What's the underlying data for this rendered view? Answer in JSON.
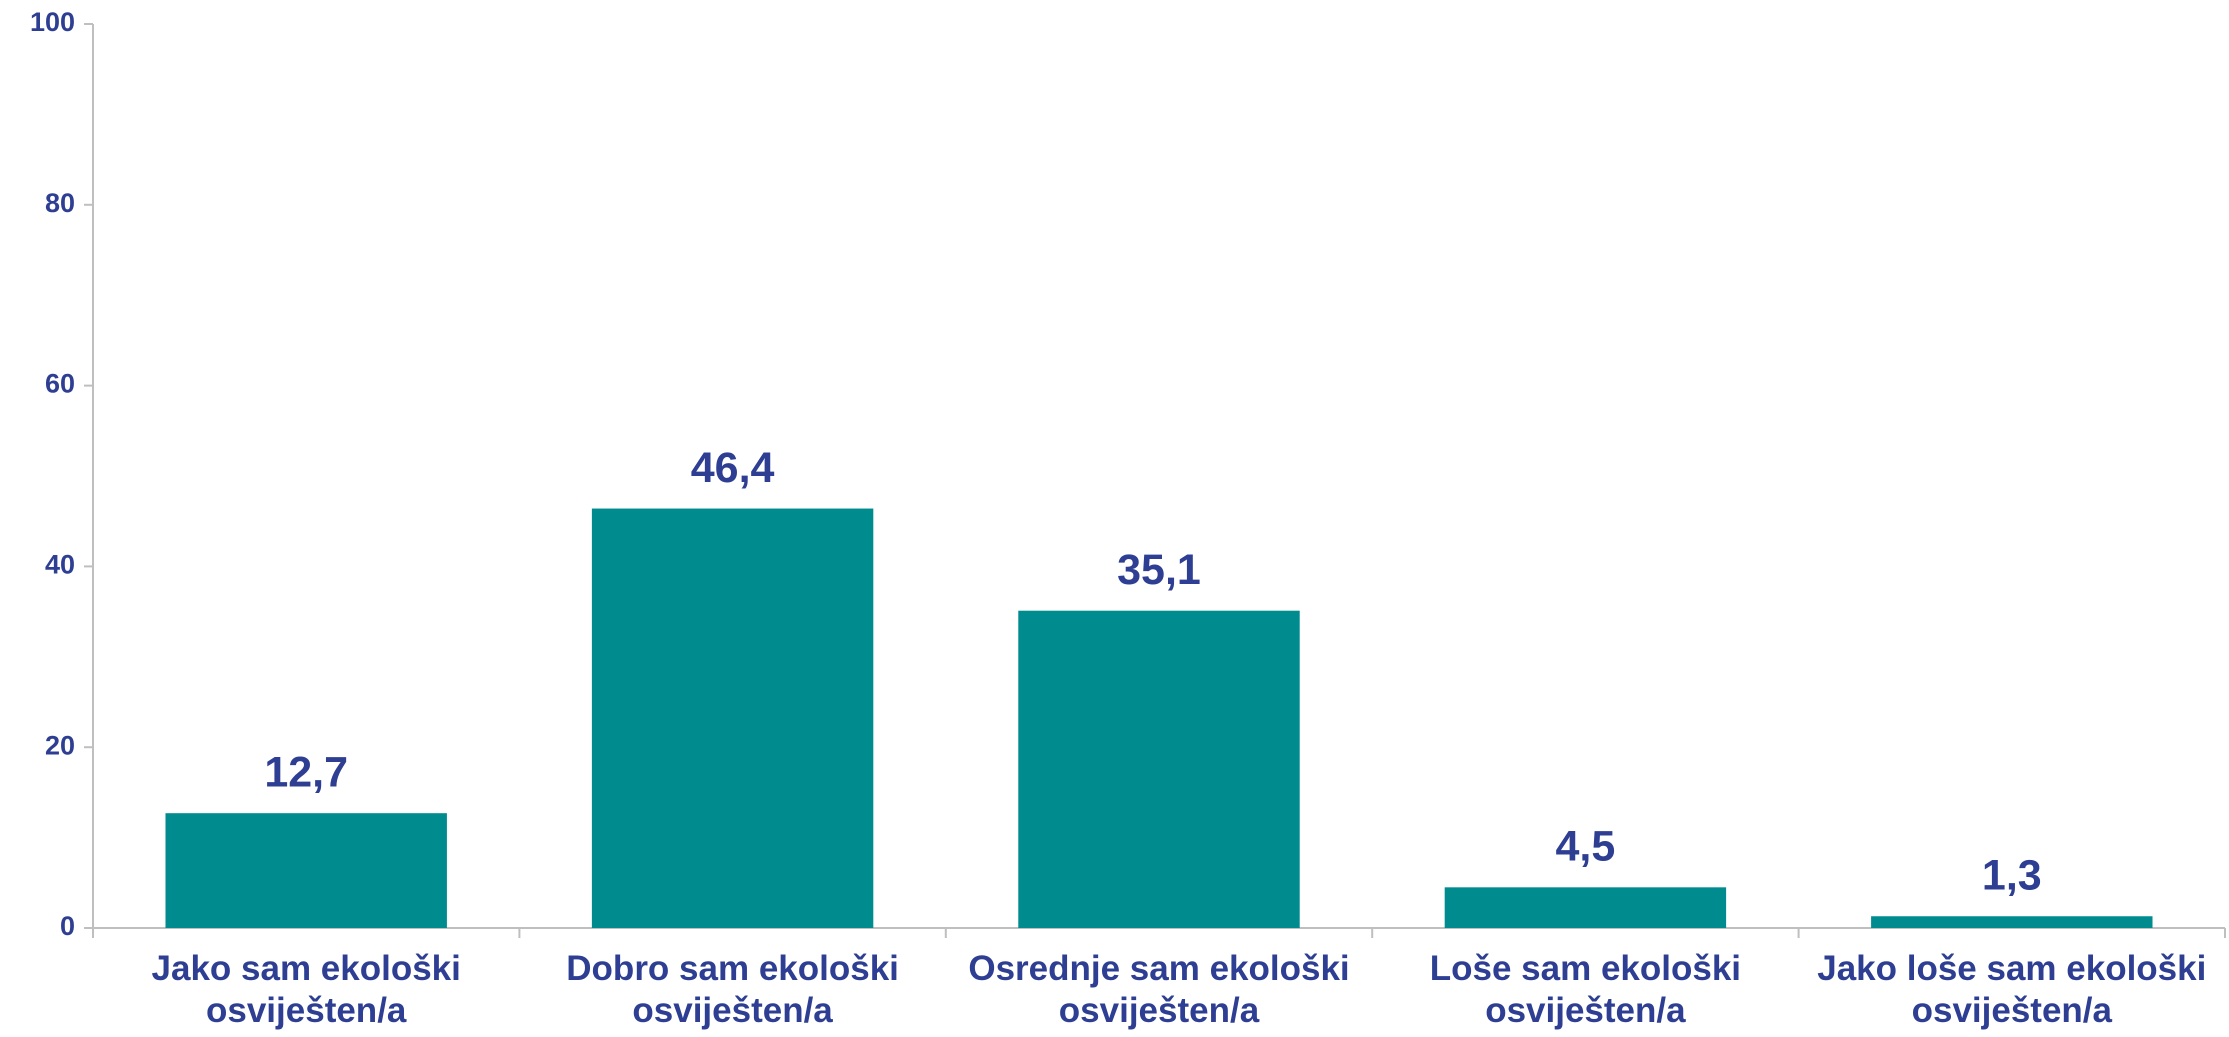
{
  "chart_data": {
    "type": "bar",
    "categories": [
      "Jako sam ekološki osviješten/a",
      "Dobro sam ekološki osviješten/a",
      "Osrednje sam ekološki osviješten/a",
      "Loše sam ekološki osviješten/a",
      "Jako loše sam ekološki osviješten/a"
    ],
    "values": [
      12.7,
      46.4,
      35.1,
      4.5,
      1.3
    ],
    "value_labels": [
      "12,7",
      "46,4",
      "35,1",
      "4,5",
      "1,3"
    ],
    "color": "#008c8f",
    "ylim": [
      0,
      100
    ],
    "yticks": [
      0,
      20,
      40,
      60,
      80,
      100
    ],
    "grid": false
  }
}
